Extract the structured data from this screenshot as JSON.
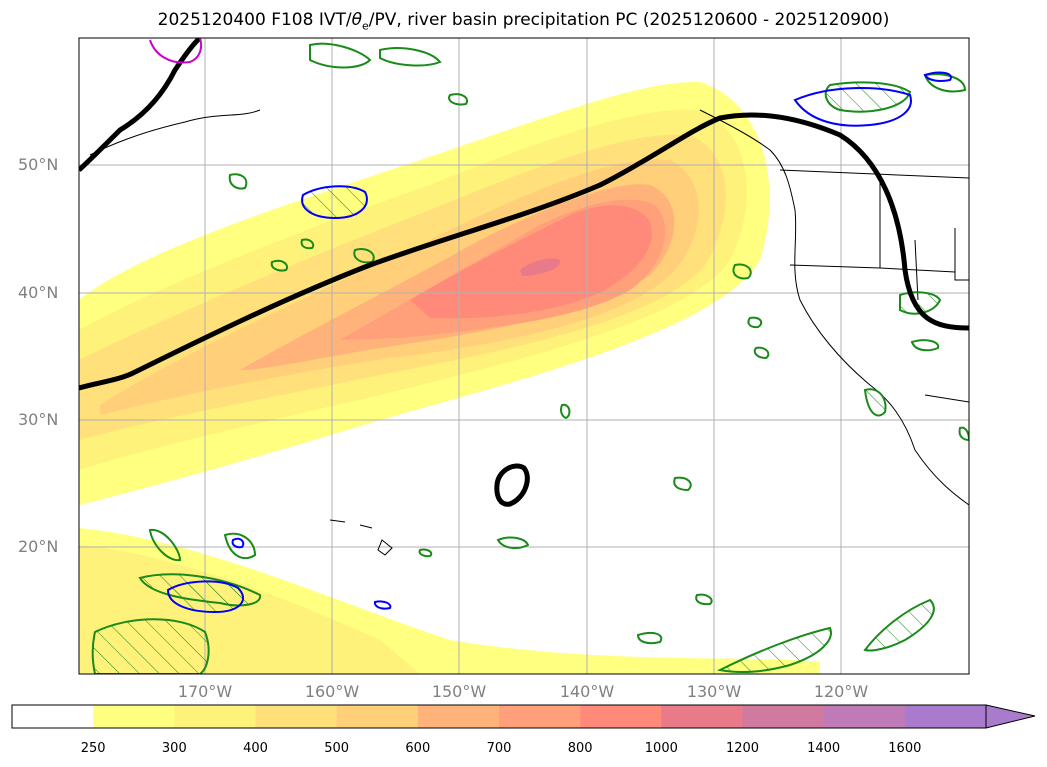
{
  "title": {
    "prefix": "2025120400 F108 IVT/",
    "theta": "θ",
    "theta_sub": "e",
    "suffix": "/PV, river basin precipitation PC (2025120600 - 2025120900)"
  },
  "map": {
    "lat_labels": [
      "50°N",
      "40°N",
      "30°N",
      "20°N"
    ],
    "lon_labels": [
      "170°W",
      "160°W",
      "150°W",
      "140°W",
      "130°W",
      "120°W"
    ]
  },
  "colorbar": {
    "ticks": [
      "250",
      "300",
      "400",
      "500",
      "600",
      "700",
      "800",
      "1000",
      "1200",
      "1400",
      "1600"
    ],
    "colors": [
      "#ffffff",
      "#ffff80",
      "#fff27a",
      "#ffe07a",
      "#ffcf7a",
      "#ffb37a",
      "#ffa07a",
      "#ff8a7a",
      "#e87a8a",
      "#d07aa0",
      "#c07ab8",
      "#aa7acc"
    ]
  }
}
